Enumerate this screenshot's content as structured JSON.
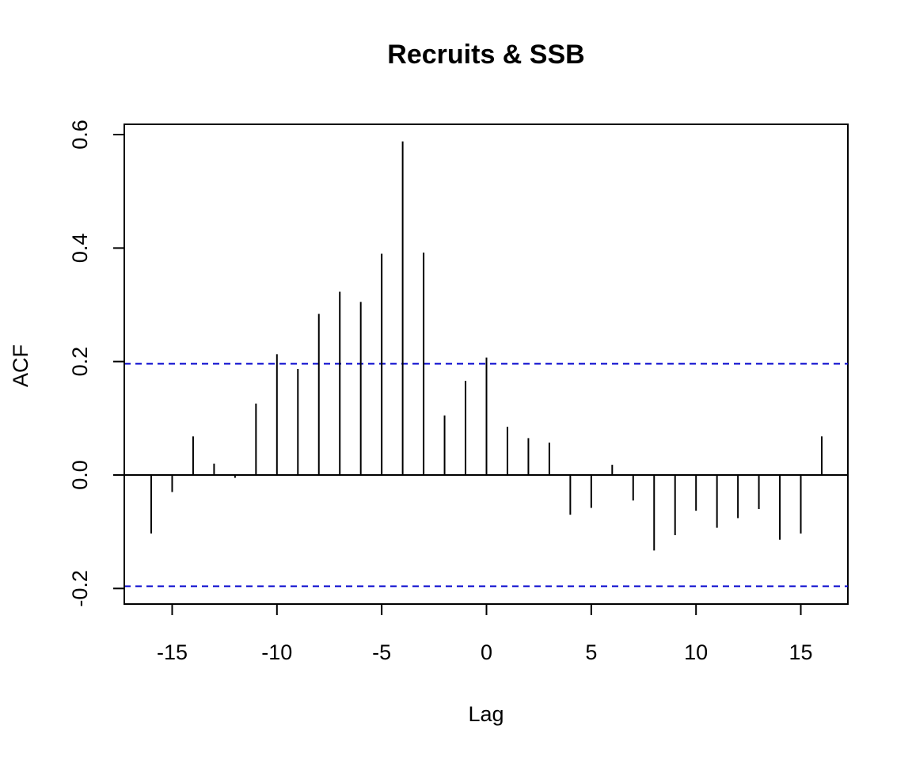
{
  "chart_data": {
    "type": "bar",
    "subtype": "acf-lollipop",
    "title": "Recruits & SSB",
    "xlabel": "Lag",
    "ylabel": "ACF",
    "xlim": [
      -16.5,
      16.5
    ],
    "ylim": [
      -0.22,
      0.6
    ],
    "x_ticks": [
      -15,
      -10,
      -5,
      0,
      5,
      10,
      15
    ],
    "x_tick_labels": [
      "-15",
      "-10",
      "-5",
      "0",
      "5",
      "10",
      "15"
    ],
    "y_ticks": [
      -0.2,
      0.0,
      0.2,
      0.4,
      0.6
    ],
    "y_tick_labels": [
      "-0.2",
      "0.0",
      "0.2",
      "0.4",
      "0.6"
    ],
    "grid": false,
    "legend": "none",
    "colors": {
      "bars": "#000000",
      "confidence_band": "#0000cc",
      "zero_line": "#000000"
    },
    "lags": [
      -16,
      -15,
      -14,
      -13,
      -12,
      -11,
      -10,
      -9,
      -8,
      -7,
      -6,
      -5,
      -4,
      -3,
      -2,
      -1,
      0,
      1,
      2,
      3,
      4,
      5,
      6,
      7,
      8,
      9,
      10,
      11,
      12,
      13,
      14,
      15,
      16
    ],
    "values": [
      -0.103,
      -0.03,
      0.068,
      0.02,
      -0.005,
      0.126,
      0.213,
      0.187,
      0.284,
      0.323,
      0.305,
      0.39,
      0.588,
      0.392,
      0.105,
      0.166,
      0.207,
      0.085,
      0.065,
      0.057,
      -0.07,
      -0.058,
      0.018,
      -0.045,
      -0.133,
      -0.106,
      -0.063,
      -0.093,
      -0.076,
      -0.06,
      -0.114,
      -0.103,
      0.068
    ],
    "confidence_bounds": [
      0.196,
      -0.196
    ]
  }
}
